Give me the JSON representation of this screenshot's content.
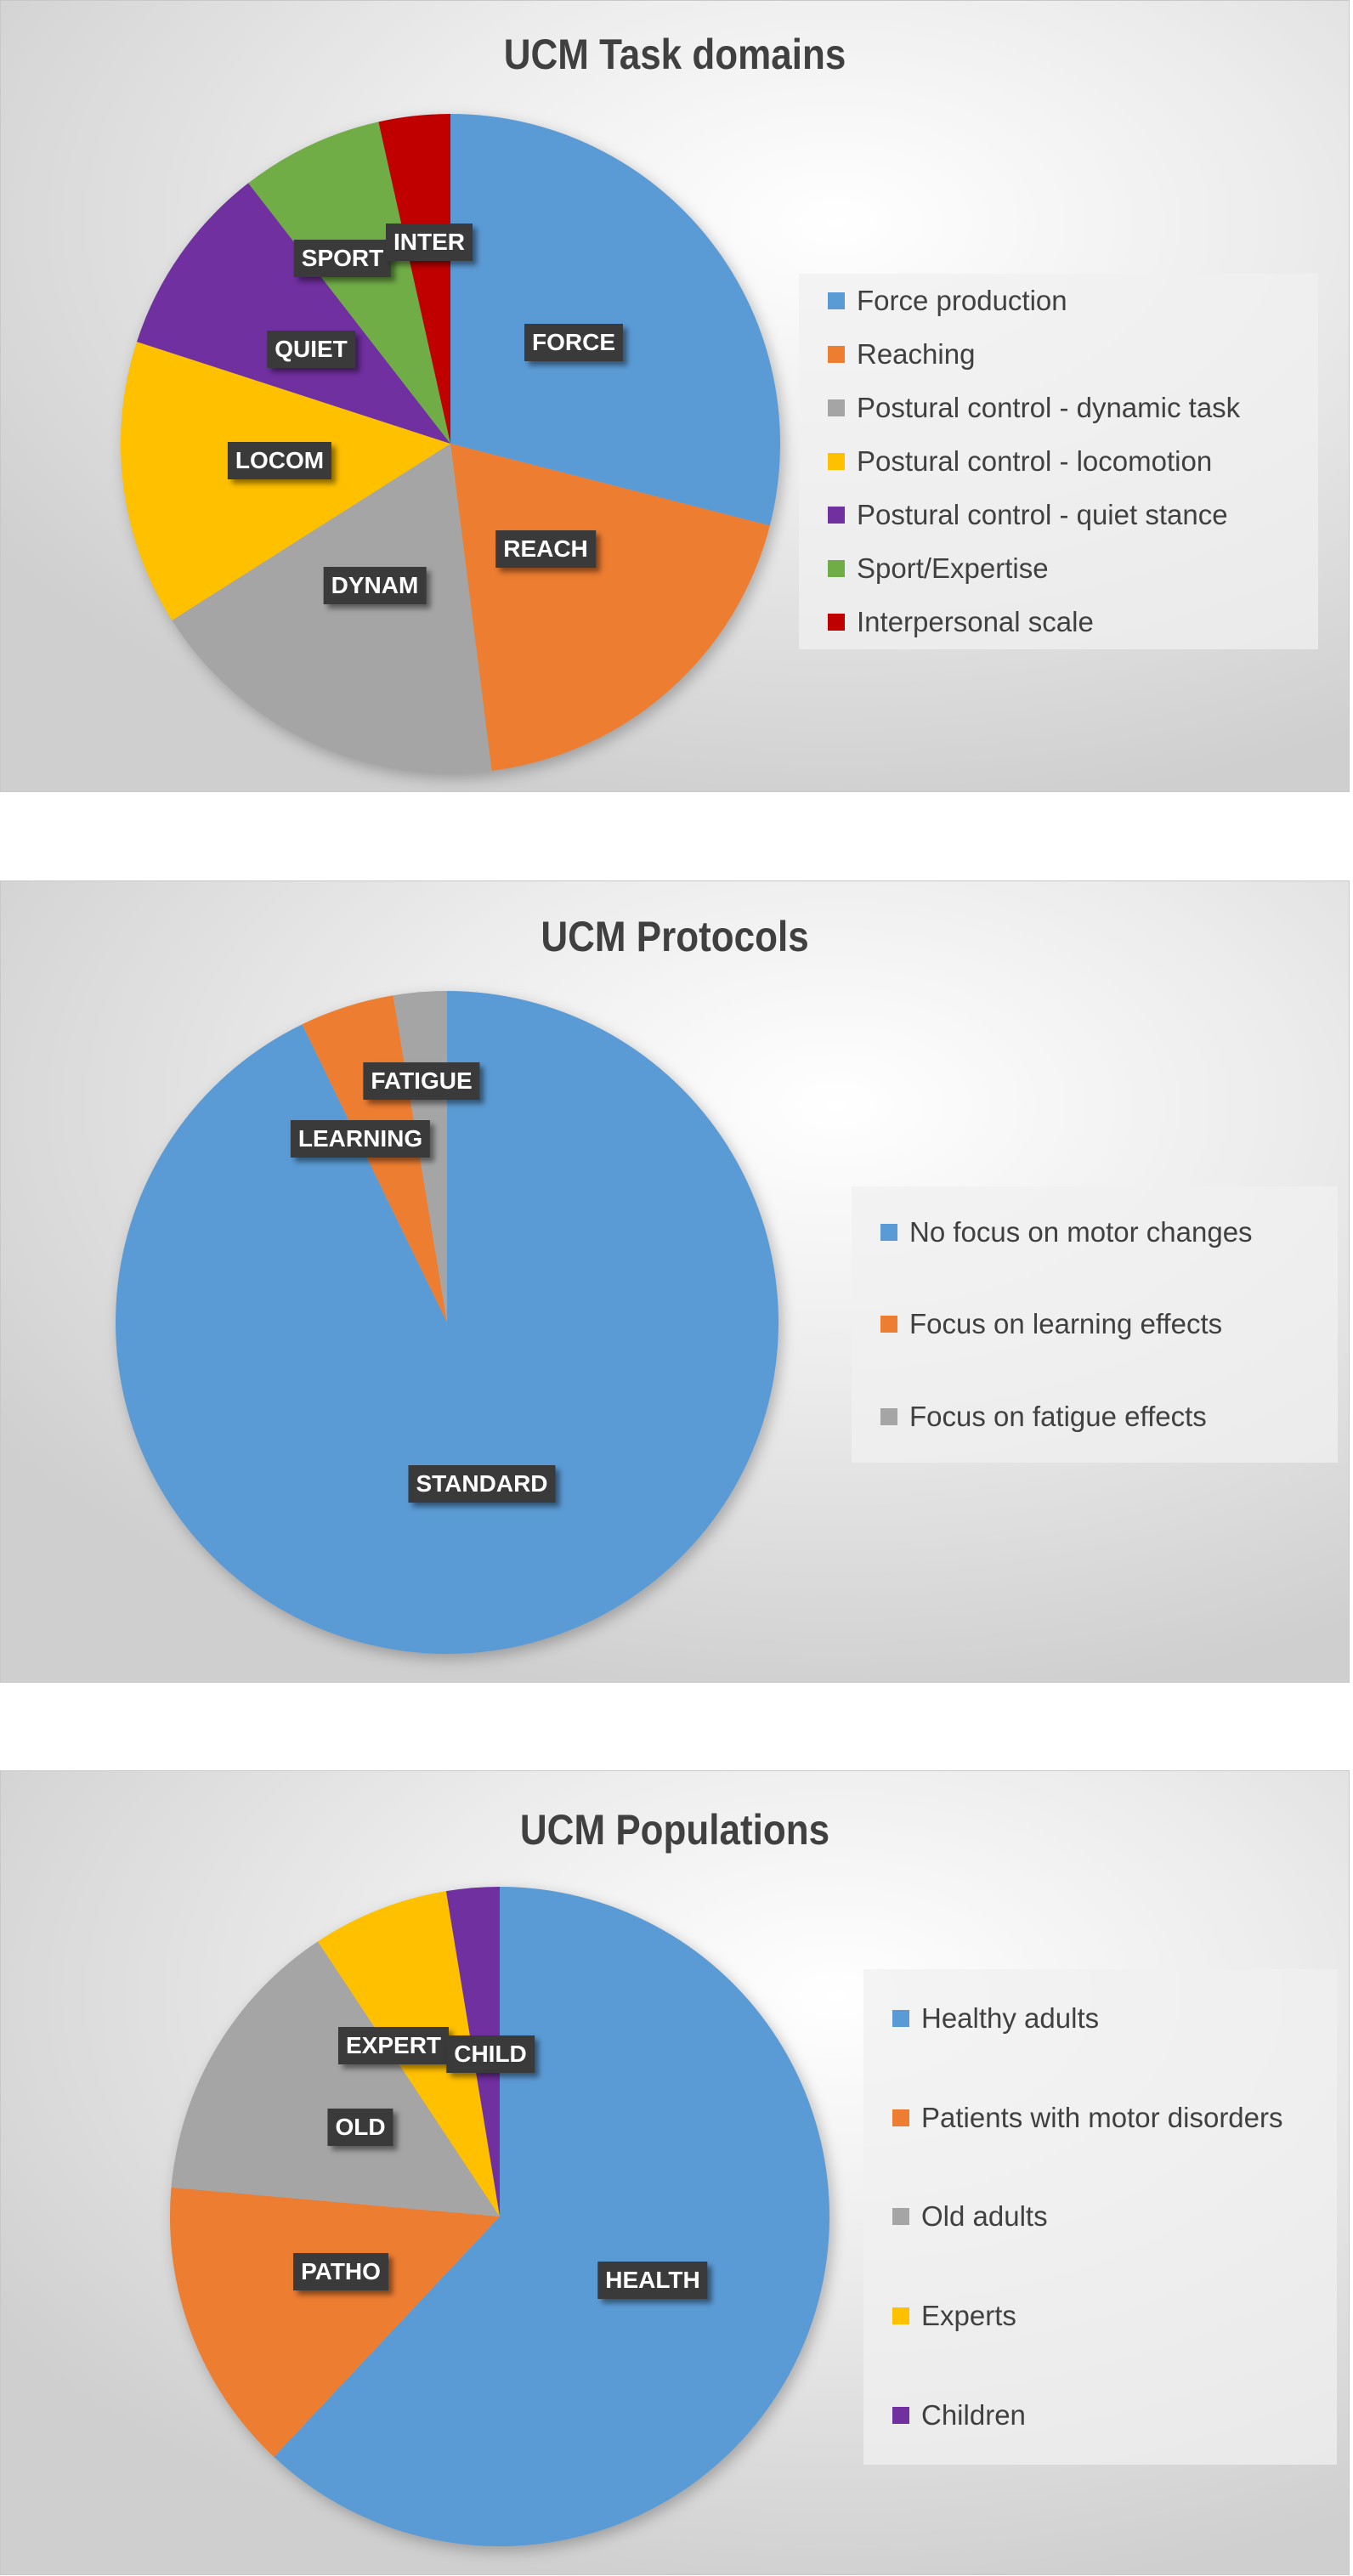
{
  "chart_data": [
    {
      "type": "pie",
      "title": "UCM Task domains",
      "legend_placement": "right",
      "categories": [
        "Force production",
        "Reaching",
        "Postural control - dynamic task",
        "Postural control - locomotion",
        "Postural control - quiet stance",
        "Sport/Expertise",
        "Interpersonal scale"
      ],
      "data_labels": [
        "FORCE",
        "REACH",
        "DYNAM",
        "LOCOM",
        "QUIET",
        "SPORT",
        "INTER"
      ],
      "values": [
        29,
        19,
        18,
        14,
        9.5,
        7,
        3.5
      ],
      "unit": "percent (estimated)",
      "colors": [
        "#5B9BD5",
        "#ED7D31",
        "#A5A5A5",
        "#FFC000",
        "#7030A0",
        "#70AD47",
        "#C00000"
      ]
    },
    {
      "type": "pie",
      "title": "UCM Protocols",
      "legend_placement": "right",
      "categories": [
        "No focus on motor changes",
        "Focus on learning effects",
        "Focus on fatigue effects"
      ],
      "data_labels": [
        "STANDARD",
        "LEARNING",
        "FATIGUE"
      ],
      "values": [
        92.8,
        4.6,
        2.6
      ],
      "unit": "percent (estimated)",
      "colors": [
        "#5B9BD5",
        "#ED7D31",
        "#A5A5A5"
      ]
    },
    {
      "type": "pie",
      "title": "UCM Populations",
      "legend_placement": "right",
      "categories": [
        "Healthy adults",
        "Patients with motor disorders",
        "Old adults",
        "Experts",
        "Children"
      ],
      "data_labels": [
        "HEALTH",
        "PATHO",
        "OLD",
        "EXPERT",
        "CHILD"
      ],
      "values": [
        62,
        14.4,
        14.3,
        6.7,
        2.6
      ],
      "unit": "percent (estimated)",
      "colors": [
        "#5B9BD5",
        "#ED7D31",
        "#A5A5A5",
        "#FFC000",
        "#7030A0"
      ]
    }
  ]
}
